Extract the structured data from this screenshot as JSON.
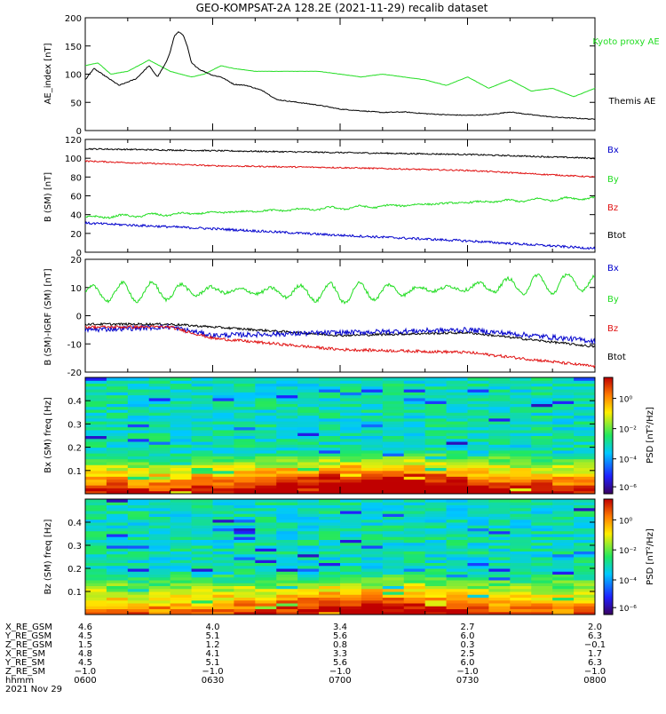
{
  "title": "GEO-KOMPSAT-2A 128.2E (2021-11-29) recalib dataset",
  "colors": {
    "black": "#000000",
    "red": "#e01010",
    "green": "#22dd22",
    "blue": "#0000cc"
  },
  "chart_data": [
    {
      "type": "line",
      "ylabel": "AE_index [nT]",
      "ylim": [
        0,
        200
      ],
      "yticks": [
        0,
        50,
        100,
        150,
        200
      ],
      "x_range": [
        "0600",
        "0800"
      ],
      "legend": [
        "Kyoto proxy AE",
        "Themis AE"
      ],
      "series": [
        {
          "name": "Kyoto proxy AE",
          "color": "green",
          "x": [
            0,
            3,
            6,
            10,
            15,
            20,
            25,
            28,
            32,
            35,
            40,
            45,
            55,
            60,
            65,
            70,
            75,
            80,
            85,
            90,
            95,
            100,
            105,
            110,
            115,
            120
          ],
          "values": [
            115,
            120,
            100,
            105,
            125,
            105,
            95,
            100,
            115,
            110,
            105,
            105,
            105,
            100,
            95,
            100,
            95,
            90,
            80,
            95,
            75,
            90,
            70,
            75,
            60,
            75
          ]
        },
        {
          "name": "Themis AE",
          "color": "black",
          "x": [
            0,
            2,
            5,
            8,
            12,
            15,
            17,
            19,
            20,
            21,
            22,
            23,
            24,
            25,
            27,
            30,
            32,
            35,
            38,
            42,
            45,
            50,
            55,
            60,
            65,
            70,
            75,
            80,
            85,
            90,
            95,
            100,
            105,
            110,
            115,
            120
          ],
          "values": [
            90,
            110,
            95,
            80,
            92,
            115,
            95,
            120,
            140,
            168,
            175,
            170,
            150,
            120,
            108,
            98,
            95,
            82,
            80,
            70,
            55,
            50,
            45,
            38,
            35,
            32,
            33,
            30,
            28,
            27,
            28,
            33,
            28,
            24,
            22,
            20
          ]
        }
      ]
    },
    {
      "type": "line",
      "ylabel": "B (SM) [nT]",
      "ylim": [
        0,
        120
      ],
      "yticks": [
        0,
        20,
        40,
        60,
        80,
        100,
        120
      ],
      "x_range": [
        "0600",
        "0800"
      ],
      "legend": [
        "Bx",
        "By",
        "Bz",
        "Btot"
      ],
      "series": [
        {
          "name": "Btot",
          "color": "black",
          "x": [
            0,
            30,
            60,
            90,
            120
          ],
          "values": [
            110,
            108,
            106,
            104,
            100
          ]
        },
        {
          "name": "Bz",
          "color": "red",
          "x": [
            0,
            30,
            60,
            90,
            120
          ],
          "values": [
            97,
            92,
            90,
            87,
            80
          ]
        },
        {
          "name": "By",
          "color": "green",
          "x": [
            0,
            30,
            60,
            90,
            120
          ],
          "values": [
            37,
            42,
            47,
            53,
            58
          ]
        },
        {
          "name": "Bx",
          "color": "blue",
          "x": [
            0,
            30,
            60,
            90,
            120
          ],
          "values": [
            31,
            25,
            18,
            12,
            4
          ]
        }
      ]
    },
    {
      "type": "line",
      "ylabel": "B (SM)-IGRF (SM) [nT]",
      "ylim": [
        -20,
        20
      ],
      "yticks": [
        -20,
        -10,
        0,
        10,
        20
      ],
      "x_range": [
        "0600",
        "0800"
      ],
      "legend": [
        "Bx",
        "By",
        "Bz",
        "Btot"
      ],
      "series": [
        {
          "name": "By",
          "color": "green",
          "x": [
            0,
            30,
            60,
            90,
            120
          ],
          "values": [
            8,
            9,
            8,
            10,
            12
          ]
        },
        {
          "name": "Btot",
          "color": "black",
          "x": [
            0,
            20,
            30,
            60,
            90,
            120
          ],
          "values": [
            -3,
            -3,
            -4,
            -7,
            -6,
            -11
          ]
        },
        {
          "name": "Bx",
          "color": "blue",
          "x": [
            0,
            20,
            30,
            60,
            90,
            120
          ],
          "values": [
            -5,
            -4,
            -7,
            -6,
            -5,
            -9
          ]
        },
        {
          "name": "Bz",
          "color": "red",
          "x": [
            0,
            20,
            30,
            60,
            90,
            120
          ],
          "values": [
            -4,
            -4,
            -8,
            -12,
            -13,
            -18
          ]
        }
      ]
    },
    {
      "type": "heatmap",
      "ylabel": "Bx (SM) freq [Hz]",
      "yticks": [
        0.1,
        0.2,
        0.3,
        0.4
      ],
      "ylim": [
        0,
        0.5
      ],
      "colorbar_label": "PSD [nT²/Hz]",
      "colorbar_ticks": [
        "10⁰",
        "10⁻²",
        "10⁻⁴",
        "10⁻⁶"
      ]
    },
    {
      "type": "heatmap",
      "ylabel": "Bz (SM) freq [Hz]",
      "yticks": [
        0.1,
        0.2,
        0.3,
        0.4
      ],
      "ylim": [
        0,
        0.5
      ],
      "colorbar_label": "PSD [nT²/Hz]",
      "colorbar_ticks": [
        "10⁰",
        "10⁻²",
        "10⁻⁴",
        "10⁻⁶"
      ]
    }
  ],
  "ephemeris": {
    "labels": [
      "X_RE_GSM",
      "Y_RE_GSM",
      "Z_RE_GSM",
      "X_RE_SM",
      "Y_RE_SM",
      "Z_RE_SM",
      "hhmm",
      "2021 Nov 29"
    ],
    "columns": [
      [
        "4.6",
        "4.5",
        "1.5",
        "4.8",
        "4.5",
        "−1.0",
        "0600"
      ],
      [
        "4.0",
        "5.1",
        "1.2",
        "4.1",
        "5.1",
        "−1.0",
        "0630"
      ],
      [
        "3.4",
        "5.6",
        "0.8",
        "3.3",
        "5.6",
        "−1.0",
        "0700"
      ],
      [
        "2.7",
        "6.0",
        "0.3",
        "2.5",
        "6.0",
        "−1.0",
        "0730"
      ],
      [
        "2.0",
        "6.3",
        "−0.1",
        "1.7",
        "6.3",
        "−1.0",
        "0800"
      ]
    ]
  }
}
